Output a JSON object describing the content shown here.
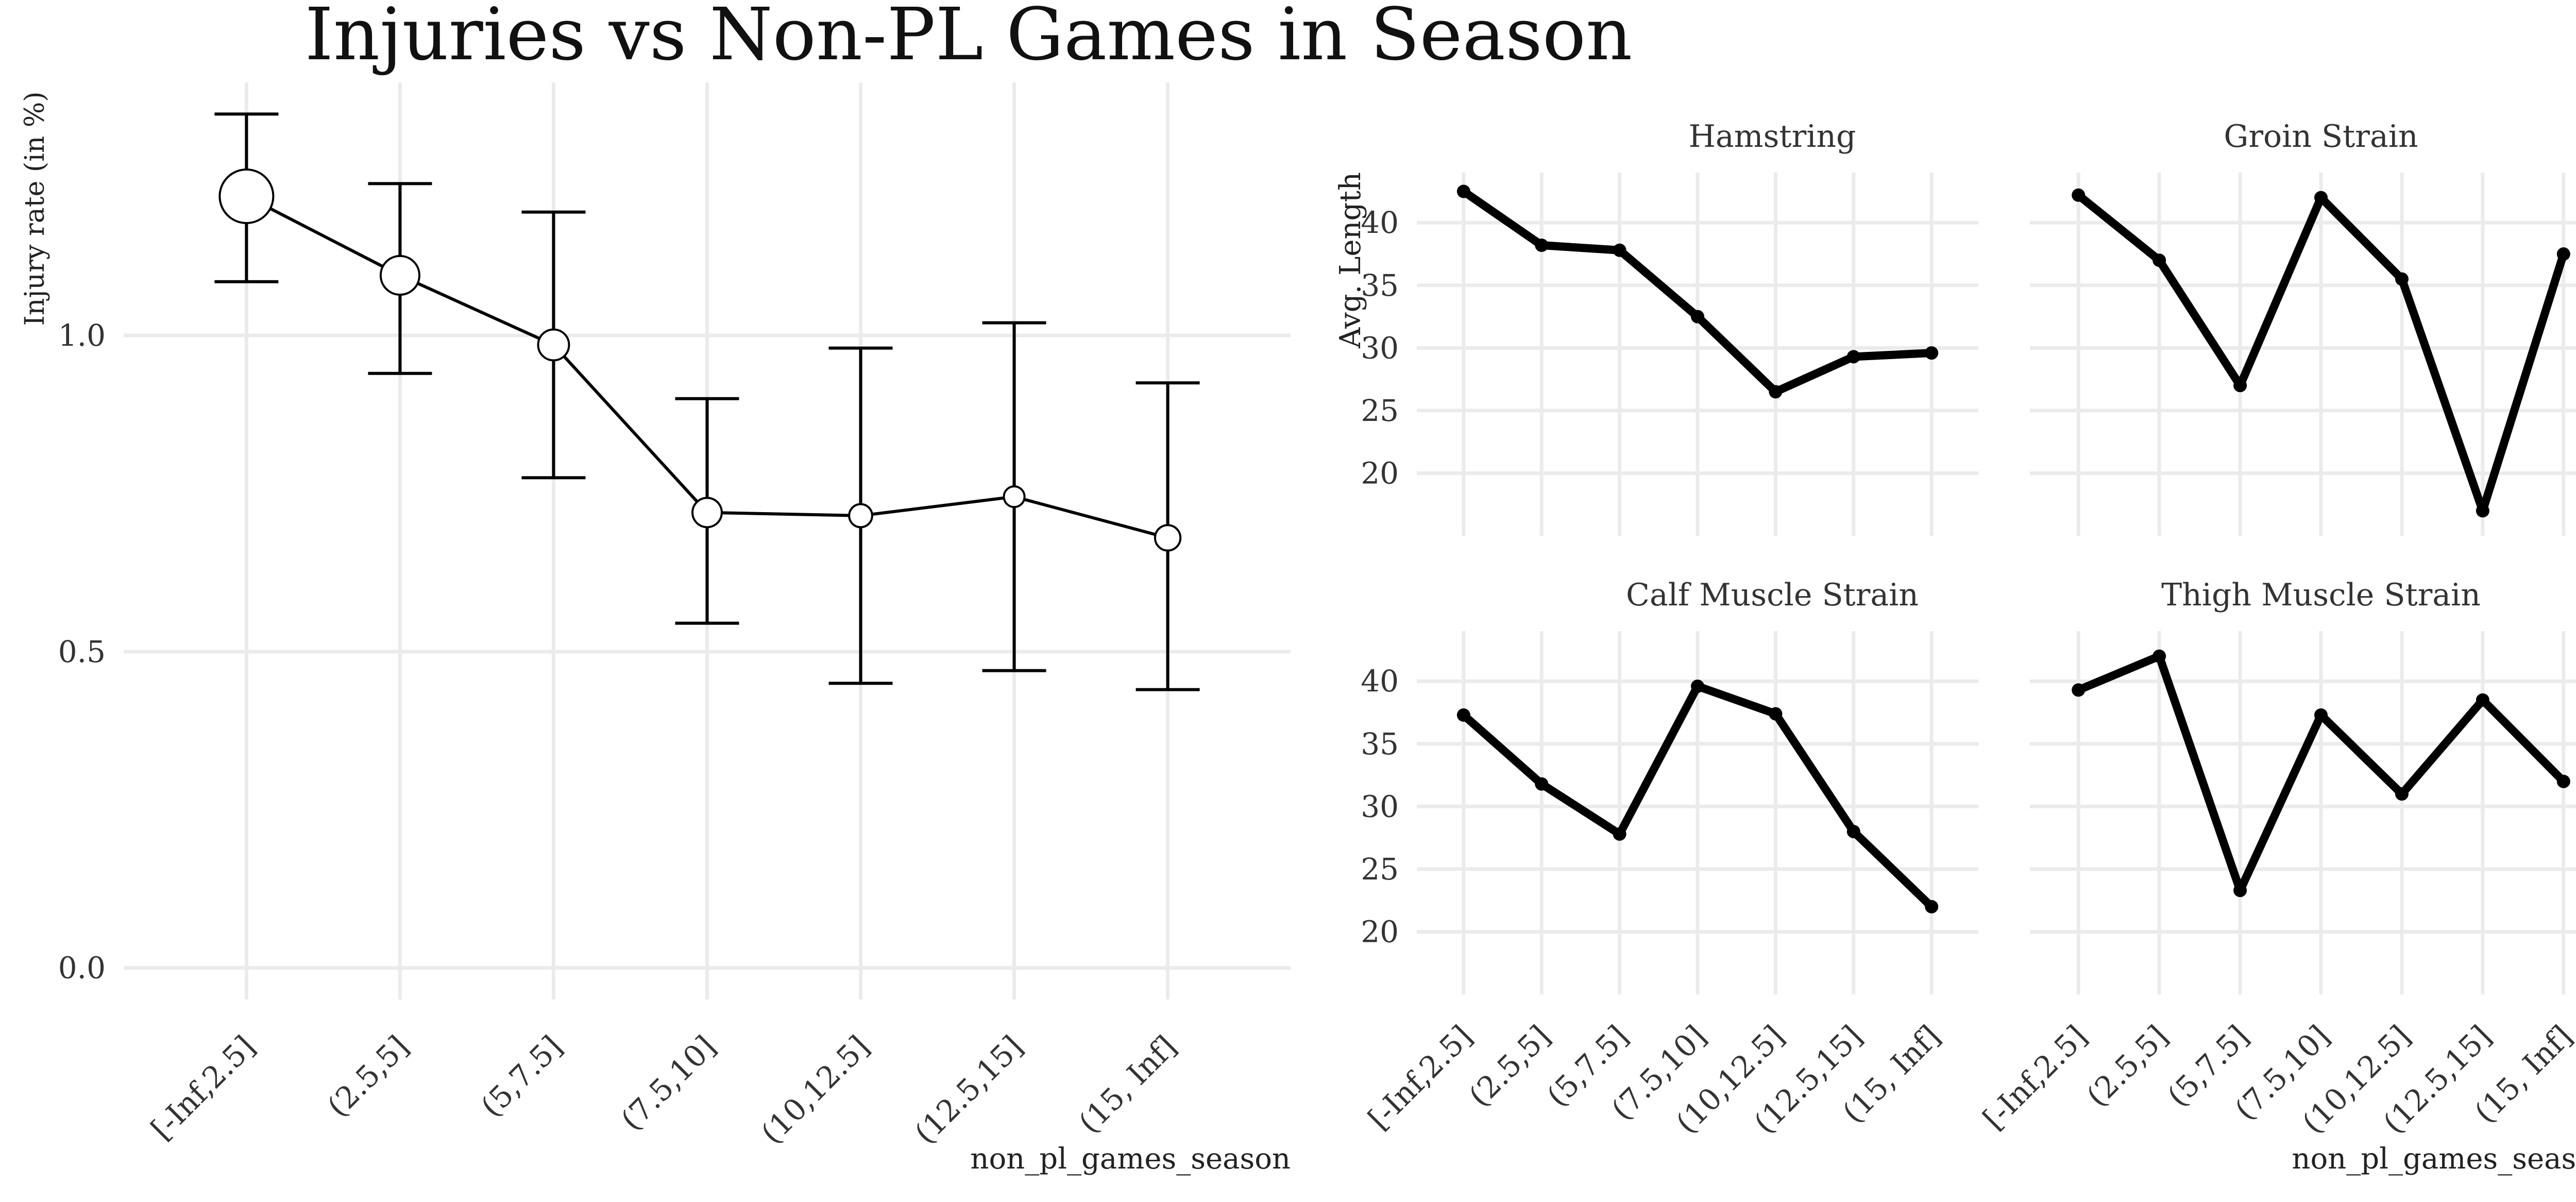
{
  "title": "Injuries vs Non-PL Games in Season",
  "categories": [
    "[-Inf,2.5]",
    "(2.5,5]",
    "(5,7.5]",
    "(7.5,10]",
    "(10,12.5]",
    "(12.5,15]",
    "(15, Inf]"
  ],
  "chart_data": [
    {
      "type": "line",
      "name": "injury-rate",
      "xlabel": "non_pl_games_season",
      "ylabel": "Injury rate (in %)",
      "ylim": [
        -0.05,
        1.4
      ],
      "yticks": [
        0.0,
        0.5,
        1.0
      ],
      "ytick_labels": [
        "0.0",
        "0.5",
        "1.0"
      ],
      "grid": true,
      "values": [
        1.22,
        1.095,
        0.985,
        0.72,
        0.715,
        0.745,
        0.68
      ],
      "ci_low": [
        1.085,
        0.94,
        0.775,
        0.545,
        0.45,
        0.47,
        0.44
      ],
      "ci_high": [
        1.35,
        1.24,
        1.195,
        0.9,
        0.98,
        1.02,
        0.925
      ],
      "point_weight": [
        1.0,
        0.62,
        0.42,
        0.38,
        0.22,
        0.16,
        0.28
      ]
    },
    {
      "type": "line",
      "name": "injury-length-facets",
      "xlabel": "non_pl_games_season",
      "ylabel": "Avg. Length",
      "ylim": [
        15,
        44
      ],
      "yticks": [
        20,
        25,
        30,
        35,
        40
      ],
      "ytick_labels": [
        "20",
        "25",
        "30",
        "35",
        "40"
      ],
      "grid": true,
      "facets": [
        {
          "name": "Hamstring",
          "values": [
            42.5,
            38.2,
            37.8,
            32.5,
            26.5,
            29.3,
            29.6
          ]
        },
        {
          "name": "Groin Strain",
          "values": [
            42.2,
            37.0,
            27.0,
            42.0,
            35.5,
            17.0,
            37.5
          ]
        },
        {
          "name": "Calf Muscle Strain",
          "values": [
            37.3,
            31.8,
            27.8,
            39.6,
            37.4,
            28.0,
            22.0
          ]
        },
        {
          "name": "Thigh Muscle Strain",
          "values": [
            39.3,
            42.0,
            23.3,
            37.3,
            31.0,
            38.5,
            32.0
          ]
        }
      ]
    }
  ]
}
